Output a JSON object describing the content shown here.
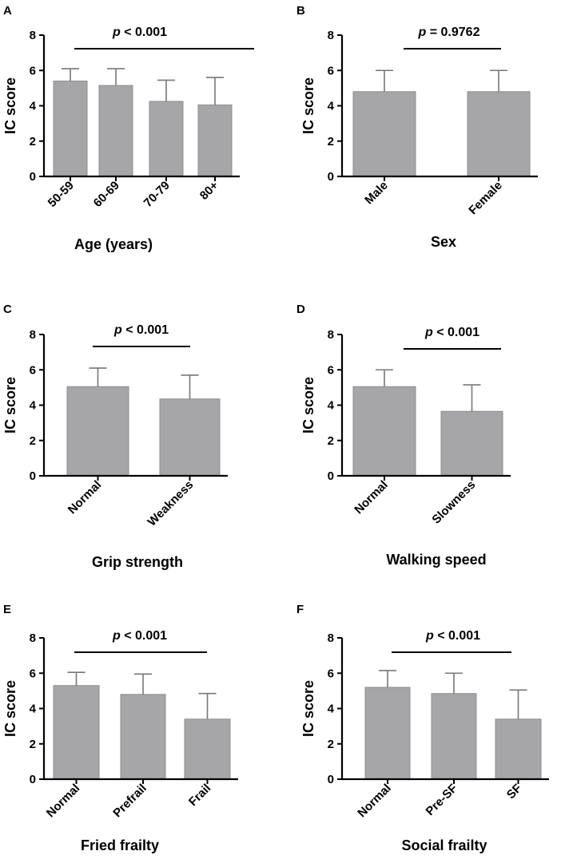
{
  "colors": {
    "bar": "#a6a6a8",
    "bar_edge": "#8e8e90",
    "axis": "#000000",
    "error": "#777777"
  },
  "chart_data": [
    {
      "id": "A",
      "type": "bar",
      "panel_label": "A",
      "categories": [
        "50-59",
        "60-69",
        "70-79",
        "80+"
      ],
      "values": [
        5.4,
        5.15,
        4.25,
        4.05
      ],
      "errors": [
        0.7,
        0.95,
        1.2,
        1.55
      ],
      "ylabel": "IC score",
      "xlabel": "Age (years)",
      "ylim": [
        0,
        8
      ],
      "yticks": [
        0,
        2,
        4,
        6,
        8
      ],
      "significance": {
        "label": "p < 0.001",
        "italic_part": "p",
        "rest": " < 0.001",
        "span": [
          0,
          3
        ]
      }
    },
    {
      "id": "B",
      "type": "bar",
      "panel_label": "B",
      "categories": [
        "Male",
        "Female"
      ],
      "values": [
        4.8,
        4.8
      ],
      "errors": [
        1.2,
        1.2
      ],
      "ylabel": "IC score",
      "xlabel": "Sex",
      "ylim": [
        0,
        8
      ],
      "yticks": [
        0,
        2,
        4,
        6,
        8
      ],
      "significance": {
        "label": "p = 0.9762",
        "italic_part": "p",
        "rest": " = 0.9762",
        "span": [
          0,
          1
        ]
      }
    },
    {
      "id": "C",
      "type": "bar",
      "panel_label": "C",
      "categories": [
        "Normal",
        "Weakness"
      ],
      "values": [
        5.05,
        4.35
      ],
      "errors": [
        1.05,
        1.35
      ],
      "ylabel": "IC score",
      "xlabel": "Grip strength",
      "ylim": [
        0,
        8
      ],
      "yticks": [
        0,
        2,
        4,
        6,
        8
      ],
      "significance": {
        "label": "p < 0.001",
        "italic_part": "p",
        "rest": " < 0.001",
        "span": [
          0,
          1
        ]
      }
    },
    {
      "id": "D",
      "type": "bar",
      "panel_label": "D",
      "categories": [
        "Normal",
        "Slowness"
      ],
      "values": [
        5.05,
        3.65
      ],
      "errors": [
        0.95,
        1.5
      ],
      "ylabel": "IC score",
      "xlabel": "Walking speed",
      "ylim": [
        0,
        8
      ],
      "yticks": [
        0,
        2,
        4,
        6,
        8
      ],
      "significance": {
        "label": "p < 0.001",
        "italic_part": "p",
        "rest": " < 0.001",
        "span": [
          0,
          1
        ]
      }
    },
    {
      "id": "E",
      "type": "bar",
      "panel_label": "E",
      "categories": [
        "Normal",
        "Prefrail",
        "Frail"
      ],
      "values": [
        5.3,
        4.8,
        3.4
      ],
      "errors": [
        0.75,
        1.15,
        1.45
      ],
      "ylabel": "IC score",
      "xlabel": "Fried frailty",
      "ylim": [
        0,
        8
      ],
      "yticks": [
        0,
        2,
        4,
        6,
        8
      ],
      "significance": {
        "label": "p < 0.001",
        "italic_part": "p",
        "rest": " < 0.001",
        "span": [
          0,
          2
        ]
      }
    },
    {
      "id": "F",
      "type": "bar",
      "panel_label": "F",
      "categories": [
        "Normal",
        "Pre-SF",
        "SF"
      ],
      "values": [
        5.2,
        4.85,
        3.4
      ],
      "errors": [
        0.95,
        1.15,
        1.65
      ],
      "ylabel": "IC score",
      "xlabel": "Social frailty",
      "ylim": [
        0,
        8
      ],
      "yticks": [
        0,
        2,
        4,
        6,
        8
      ],
      "significance": {
        "label": "p < 0.001",
        "italic_part": "p",
        "rest": " < 0.001",
        "span": [
          0,
          2
        ]
      }
    }
  ]
}
